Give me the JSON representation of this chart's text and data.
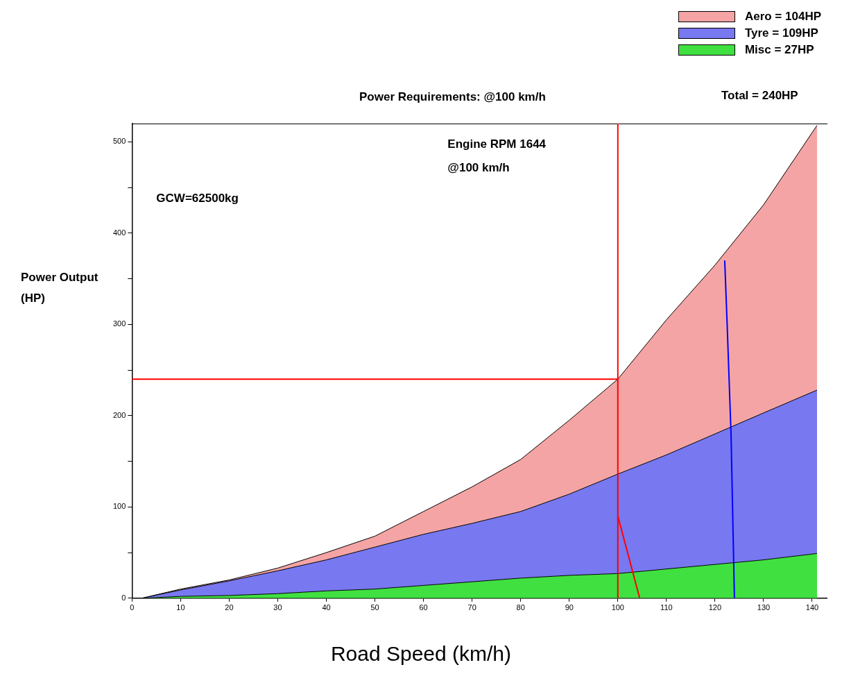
{
  "chart_data": {
    "type": "area",
    "title": "Power Requirements: @100 km/h",
    "xlabel": "Road Speed (km/h)",
    "ylabel": "Power Output (HP)",
    "stacked": true,
    "x": [
      2,
      10,
      20,
      30,
      40,
      50,
      60,
      70,
      80,
      90,
      100,
      110,
      120,
      130,
      141
    ],
    "series": [
      {
        "name": "Misc = 27HP",
        "color": "#40e040",
        "values": [
          0,
          2,
          3,
          5,
          8,
          10,
          14,
          18,
          22,
          25,
          27,
          32,
          37,
          42,
          49
        ]
      },
      {
        "name": "Tyre = 109HP",
        "color": "#7878f0",
        "values": [
          0,
          7,
          16,
          25,
          34,
          46,
          56,
          64,
          73,
          89,
          109,
          125,
          143,
          161,
          179
        ]
      },
      {
        "name": "Aero = 104HP",
        "color": "#f4a4a4",
        "values": [
          0,
          1,
          1,
          3,
          8,
          12,
          25,
          40,
          57,
          81,
          104,
          148,
          185,
          228,
          290
        ]
      },
      {
        "type": "line",
        "color": "#ff0000",
        "x": [
          100,
          104.5
        ],
        "values": [
          90,
          0
        ]
      },
      {
        "type": "line",
        "color": "#0000ff",
        "x": [
          122,
          122.5,
          123.3,
          124
        ],
        "values": [
          370,
          300,
          180,
          0
        ]
      }
    ],
    "xlim": [
      0,
      143
    ],
    "xticks": [
      0,
      10,
      20,
      30,
      40,
      50,
      60,
      70,
      80,
      90,
      100,
      110,
      120,
      130,
      140
    ],
    "ylim": [
      0,
      520
    ],
    "yticks": [
      0,
      {
        "value": 50,
        "label": null
      },
      100,
      {
        "value": 150,
        "label": null
      },
      200,
      {
        "value": 250,
        "label": null
      },
      300,
      {
        "value": 350,
        "label": null
      },
      400,
      {
        "value": 450,
        "label": null
      },
      500
    ],
    "ref_lines": [
      {
        "axis": "x",
        "value": 100,
        "color": "#ff0000"
      },
      {
        "axis": "y",
        "value": 240,
        "color": "#ff0000"
      }
    ],
    "annotations": [
      "GCW=62500kg",
      "Engine RPM 1644\n@100 km/h",
      "Total = 240HP"
    ],
    "legend": "top right",
    "grid": false,
    "marker": "none",
    "line_style": "solid"
  }
}
